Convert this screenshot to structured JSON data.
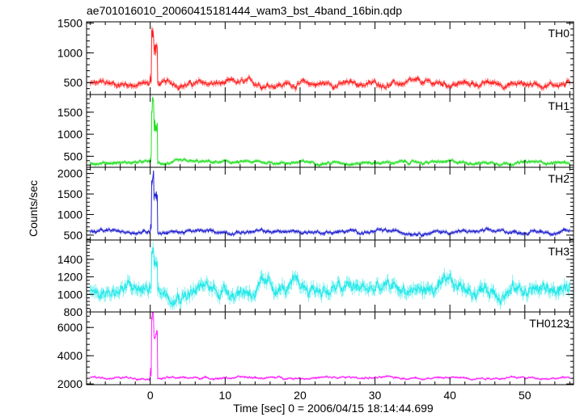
{
  "chart_data": {
    "type": "line",
    "title": "ae701016010_20060415181444_wam3_bst_4band_16bin.qdp",
    "xlabel": "Time [sec] 0 = 2006/04/15 18:14:44.699",
    "ylabel": "Counts/sec",
    "xlim": [
      -8.5,
      56.5
    ],
    "x_ticks": [
      0,
      10,
      20,
      30,
      40,
      50
    ],
    "x_tick_labels": [
      "0",
      "10",
      "20",
      "30",
      "40",
      "50"
    ],
    "burst_time_sec": 0.4,
    "grid": false,
    "legend": "none",
    "panels": [
      {
        "name": "TH0",
        "color": "#ff2020",
        "ylim": [
          300,
          1520
        ],
        "y_ticks": [
          500,
          1000,
          1500
        ],
        "baseline": 480,
        "peak": 1500,
        "noise_amplitude": 45,
        "errorbar": 40
      },
      {
        "name": "TH1",
        "color": "#20e020",
        "ylim": [
          250,
          1900
        ],
        "y_ticks": [
          500,
          1000,
          1500
        ],
        "baseline": 360,
        "peak": 1850,
        "noise_amplitude": 30,
        "errorbar": 35
      },
      {
        "name": "TH2",
        "color": "#2020d0",
        "ylim": [
          380,
          2150
        ],
        "y_ticks": [
          500,
          1000,
          1500,
          2000
        ],
        "baseline": 580,
        "peak": 2100,
        "noise_amplitude": 40,
        "errorbar": 40
      },
      {
        "name": "TH3",
        "color": "#20e8e8",
        "ylim": [
          800,
          1620
        ],
        "y_ticks": [
          800,
          1000,
          1200,
          1400
        ],
        "baseline": 1060,
        "peak": 1560,
        "noise_amplitude": 75,
        "errorbar": 60
      },
      {
        "name": "TH0123",
        "color": "#ff20ff",
        "ylim": [
          1950,
          7100
        ],
        "y_ticks": [
          2000,
          4000,
          6000
        ],
        "baseline": 2440,
        "peak": 7700,
        "noise_amplitude": 70,
        "errorbar": 60
      }
    ]
  }
}
